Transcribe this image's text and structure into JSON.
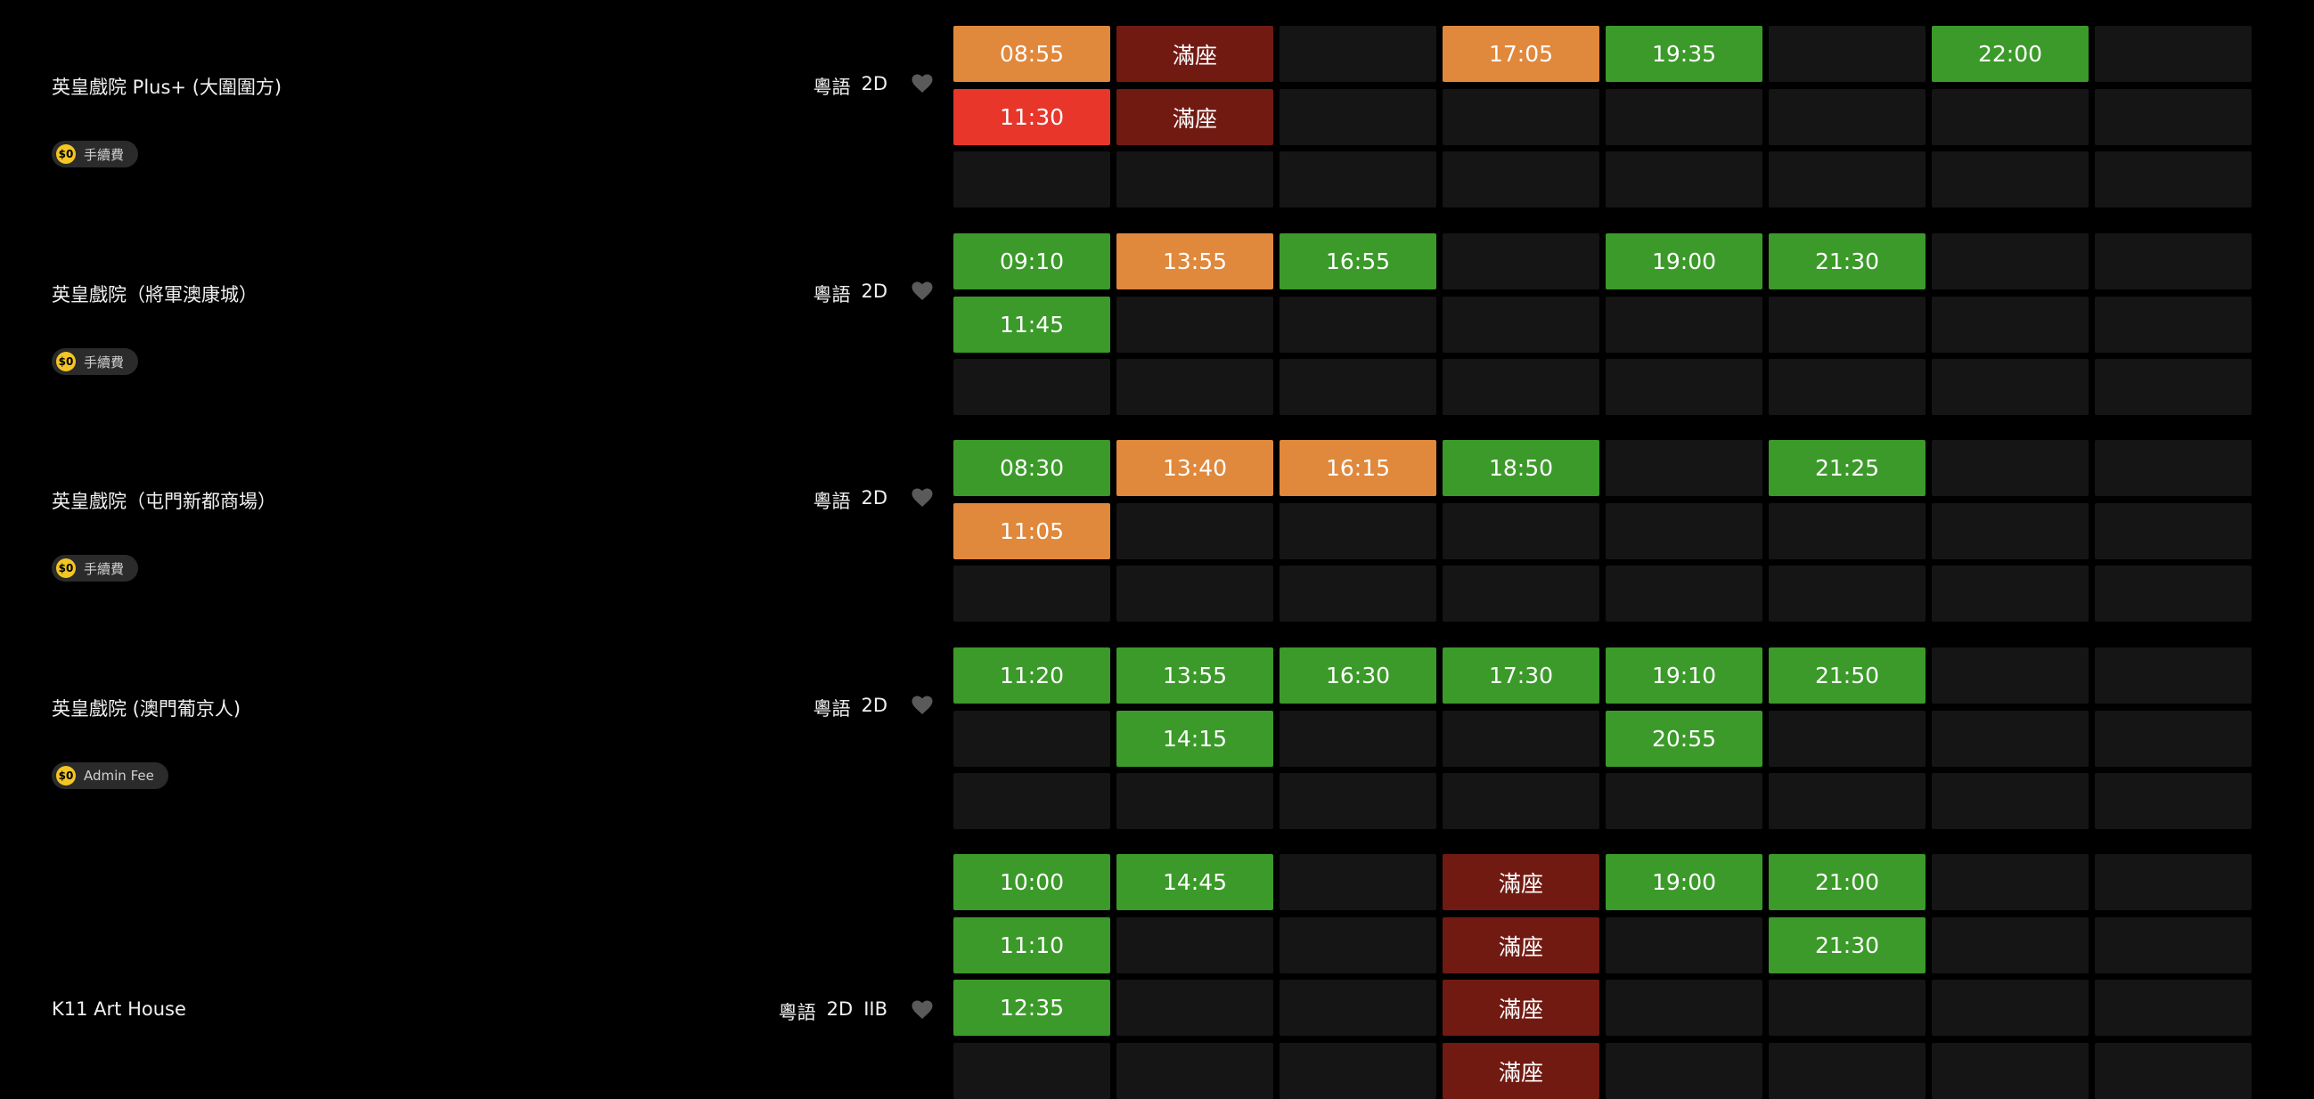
{
  "cinemas": [
    {
      "name": "英皇戲院 Plus+ (大圍圍方)",
      "tags": [
        "粵語",
        "2D"
      ],
      "fee": {
        "coin": "$0",
        "text": "手續費"
      },
      "rows": [
        [
          {
            "t": "08:55",
            "s": "limited"
          },
          {
            "t": "滿座",
            "s": "full"
          },
          {
            "t": "",
            "s": "empty"
          },
          {
            "t": "17:05",
            "s": "limited"
          },
          {
            "t": "19:35",
            "s": "available"
          },
          {
            "t": "",
            "s": "empty"
          },
          {
            "t": "22:00",
            "s": "available"
          },
          {
            "t": "",
            "s": "empty"
          }
        ],
        [
          {
            "t": "11:30",
            "s": "last"
          },
          {
            "t": "滿座",
            "s": "full"
          },
          {
            "t": "",
            "s": "empty"
          },
          {
            "t": "",
            "s": "empty"
          },
          {
            "t": "",
            "s": "empty"
          },
          {
            "t": "",
            "s": "empty"
          },
          {
            "t": "",
            "s": "empty"
          },
          {
            "t": "",
            "s": "empty"
          }
        ],
        [
          {
            "t": "",
            "s": "empty"
          },
          {
            "t": "",
            "s": "empty"
          },
          {
            "t": "",
            "s": "empty"
          },
          {
            "t": "",
            "s": "empty"
          },
          {
            "t": "",
            "s": "empty"
          },
          {
            "t": "",
            "s": "empty"
          },
          {
            "t": "",
            "s": "empty"
          },
          {
            "t": "",
            "s": "empty"
          }
        ]
      ]
    },
    {
      "name": "英皇戲院（將軍澳康城）",
      "tags": [
        "粵語",
        "2D"
      ],
      "fee": {
        "coin": "$0",
        "text": "手續費"
      },
      "rows": [
        [
          {
            "t": "09:10",
            "s": "available"
          },
          {
            "t": "13:55",
            "s": "limited"
          },
          {
            "t": "16:55",
            "s": "available"
          },
          {
            "t": "",
            "s": "empty"
          },
          {
            "t": "19:00",
            "s": "available"
          },
          {
            "t": "21:30",
            "s": "available"
          },
          {
            "t": "",
            "s": "empty"
          },
          {
            "t": "",
            "s": "empty"
          }
        ],
        [
          {
            "t": "11:45",
            "s": "available"
          },
          {
            "t": "",
            "s": "empty"
          },
          {
            "t": "",
            "s": "empty"
          },
          {
            "t": "",
            "s": "empty"
          },
          {
            "t": "",
            "s": "empty"
          },
          {
            "t": "",
            "s": "empty"
          },
          {
            "t": "",
            "s": "empty"
          },
          {
            "t": "",
            "s": "empty"
          }
        ],
        [
          {
            "t": "",
            "s": "empty"
          },
          {
            "t": "",
            "s": "empty"
          },
          {
            "t": "",
            "s": "empty"
          },
          {
            "t": "",
            "s": "empty"
          },
          {
            "t": "",
            "s": "empty"
          },
          {
            "t": "",
            "s": "empty"
          },
          {
            "t": "",
            "s": "empty"
          },
          {
            "t": "",
            "s": "empty"
          }
        ]
      ]
    },
    {
      "name": "英皇戲院（屯門新都商場）",
      "tags": [
        "粵語",
        "2D"
      ],
      "fee": {
        "coin": "$0",
        "text": "手續費"
      },
      "rows": [
        [
          {
            "t": "08:30",
            "s": "available"
          },
          {
            "t": "13:40",
            "s": "limited"
          },
          {
            "t": "16:15",
            "s": "limited"
          },
          {
            "t": "18:50",
            "s": "available"
          },
          {
            "t": "",
            "s": "empty"
          },
          {
            "t": "21:25",
            "s": "available"
          },
          {
            "t": "",
            "s": "empty"
          },
          {
            "t": "",
            "s": "empty"
          }
        ],
        [
          {
            "t": "11:05",
            "s": "limited"
          },
          {
            "t": "",
            "s": "empty"
          },
          {
            "t": "",
            "s": "empty"
          },
          {
            "t": "",
            "s": "empty"
          },
          {
            "t": "",
            "s": "empty"
          },
          {
            "t": "",
            "s": "empty"
          },
          {
            "t": "",
            "s": "empty"
          },
          {
            "t": "",
            "s": "empty"
          }
        ],
        [
          {
            "t": "",
            "s": "empty"
          },
          {
            "t": "",
            "s": "empty"
          },
          {
            "t": "",
            "s": "empty"
          },
          {
            "t": "",
            "s": "empty"
          },
          {
            "t": "",
            "s": "empty"
          },
          {
            "t": "",
            "s": "empty"
          },
          {
            "t": "",
            "s": "empty"
          },
          {
            "t": "",
            "s": "empty"
          }
        ]
      ]
    },
    {
      "name": "英皇戲院 (澳門葡京人)",
      "tags": [
        "粵語",
        "2D"
      ],
      "fee": {
        "coin": "$0",
        "text": "Admin Fee"
      },
      "rows": [
        [
          {
            "t": "11:20",
            "s": "available"
          },
          {
            "t": "13:55",
            "s": "available"
          },
          {
            "t": "16:30",
            "s": "available"
          },
          {
            "t": "17:30",
            "s": "available"
          },
          {
            "t": "19:10",
            "s": "available"
          },
          {
            "t": "21:50",
            "s": "available"
          },
          {
            "t": "",
            "s": "empty"
          },
          {
            "t": "",
            "s": "empty"
          }
        ],
        [
          {
            "t": "",
            "s": "empty"
          },
          {
            "t": "14:15",
            "s": "available"
          },
          {
            "t": "",
            "s": "empty"
          },
          {
            "t": "",
            "s": "empty"
          },
          {
            "t": "20:55",
            "s": "available"
          },
          {
            "t": "",
            "s": "empty"
          },
          {
            "t": "",
            "s": "empty"
          },
          {
            "t": "",
            "s": "empty"
          }
        ],
        [
          {
            "t": "",
            "s": "empty"
          },
          {
            "t": "",
            "s": "empty"
          },
          {
            "t": "",
            "s": "empty"
          },
          {
            "t": "",
            "s": "empty"
          },
          {
            "t": "",
            "s": "empty"
          },
          {
            "t": "",
            "s": "empty"
          },
          {
            "t": "",
            "s": "empty"
          },
          {
            "t": "",
            "s": "empty"
          }
        ]
      ]
    },
    {
      "name": "K11 Art House",
      "tags": [
        "粵語",
        "2D",
        "IIB"
      ],
      "fee": null,
      "rows": [
        [
          {
            "t": "10:00",
            "s": "available"
          },
          {
            "t": "14:45",
            "s": "available"
          },
          {
            "t": "",
            "s": "empty"
          },
          {
            "t": "滿座",
            "s": "full"
          },
          {
            "t": "19:00",
            "s": "available"
          },
          {
            "t": "21:00",
            "s": "available"
          },
          {
            "t": "",
            "s": "empty"
          },
          {
            "t": "",
            "s": "empty"
          }
        ],
        [
          {
            "t": "11:10",
            "s": "available"
          },
          {
            "t": "",
            "s": "empty"
          },
          {
            "t": "",
            "s": "empty"
          },
          {
            "t": "滿座",
            "s": "full"
          },
          {
            "t": "",
            "s": "empty"
          },
          {
            "t": "21:30",
            "s": "available"
          },
          {
            "t": "",
            "s": "empty"
          },
          {
            "t": "",
            "s": "empty"
          }
        ],
        [
          {
            "t": "12:35",
            "s": "available"
          },
          {
            "t": "",
            "s": "empty"
          },
          {
            "t": "",
            "s": "empty"
          },
          {
            "t": "滿座",
            "s": "full"
          },
          {
            "t": "",
            "s": "empty"
          },
          {
            "t": "",
            "s": "empty"
          },
          {
            "t": "",
            "s": "empty"
          },
          {
            "t": "",
            "s": "empty"
          }
        ],
        [
          {
            "t": "",
            "s": "empty"
          },
          {
            "t": "",
            "s": "empty"
          },
          {
            "t": "",
            "s": "empty"
          },
          {
            "t": "滿座",
            "s": "full"
          },
          {
            "t": "",
            "s": "empty"
          },
          {
            "t": "",
            "s": "empty"
          },
          {
            "t": "",
            "s": "empty"
          },
          {
            "t": "",
            "s": "empty"
          }
        ]
      ]
    }
  ],
  "status_colors": {
    "available": "#3b9a29",
    "limited": "#e0883b",
    "last": "#e8362b",
    "full": "#711a12",
    "empty": "#151515"
  },
  "icons": {
    "favourite": "heart-icon",
    "fee": "coin-icon"
  }
}
